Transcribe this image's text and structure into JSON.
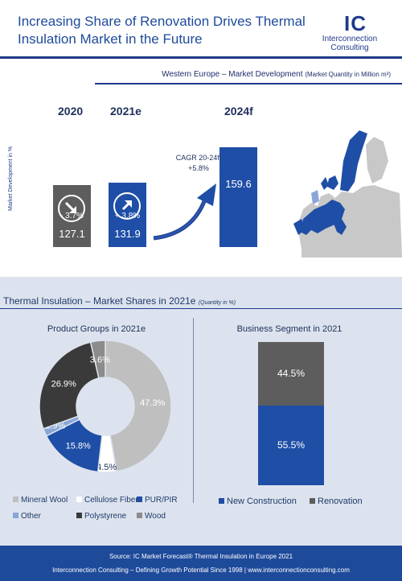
{
  "header": {
    "title": "Increasing Share of Renovation Drives Thermal Insulation Market in the Future",
    "logo_mark": "IC",
    "logo_line1": "Interconnection",
    "logo_line2": "Consulting"
  },
  "colors": {
    "navy": "#1e3a8a",
    "blue": "#1e4ea6",
    "gray": "#5d5d5d",
    "light_gray": "#bfbfbf",
    "light_blue": "#8aa6d6",
    "dark_gray": "#3a3a3a",
    "mid_gray": "#8c8c8c"
  },
  "market": {
    "title": "Western Europe – Market Development",
    "subtitle": "(Market Quantity in Million m³)",
    "ylabel": "Market Development in %",
    "cagr_line1": "CAGR 20-24f:",
    "cagr_line2": "+5.8%",
    "map_icon": "europe-map-icon",
    "arrow_icon": "growth-arrow-icon"
  },
  "chart_data": [
    {
      "type": "bar",
      "title": "Western Europe – Market Development",
      "categories": [
        "2020",
        "2021e",
        "2024f"
      ],
      "values": [
        127.1,
        131.9,
        159.6
      ],
      "value_labels": [
        "127.1",
        "131.9",
        "159.6"
      ],
      "growth": [
        "- 3.7%",
        "+ 3.8%",
        ""
      ],
      "colors": [
        "#5d5d5d",
        "#1e4ea6",
        "#1e4ea6"
      ],
      "ylabel": "Market Development in %"
    },
    {
      "type": "pie",
      "title": "Product Groups in 2021e",
      "labels": [
        "Mineral Wool",
        "Cellulose Fiber",
        "PUR/PIR",
        "Other",
        "Polystyrene",
        "Wood"
      ],
      "values": [
        47.3,
        4.5,
        15.8,
        1.9,
        26.9,
        3.6
      ],
      "value_labels": [
        "47.3%",
        "4.5%",
        "15.8%",
        "1.9%",
        "26.9%",
        "3.6%"
      ],
      "colors": [
        "#bfbfbf",
        "#ffffff",
        "#1e4ea6",
        "#8aa6d6",
        "#3a3a3a",
        "#8c8c8c"
      ],
      "legend": "bottom"
    },
    {
      "type": "bar",
      "title": "Business Segment in 2021",
      "categories": [
        "2021"
      ],
      "series": [
        {
          "name": "New Construction",
          "values": [
            55.5
          ],
          "label": "55.5%",
          "color": "#1e4ea6"
        },
        {
          "name": "Renovation",
          "values": [
            44.5
          ],
          "label": "44.5%",
          "color": "#5d5d5d"
        }
      ],
      "stacked": true,
      "legend": "bottom"
    }
  ],
  "shares": {
    "title": "Thermal Insulation – Market Shares in 2021e",
    "subtitle": "(Quantity in %)"
  },
  "footer": {
    "line1": "Source: IC Market Forecast® Thermal Insulation in Europe 2021",
    "line2": "Interconnection Consulting – Defining Growth Potential Since 1998 | www.interconnectionconsulting.com"
  }
}
